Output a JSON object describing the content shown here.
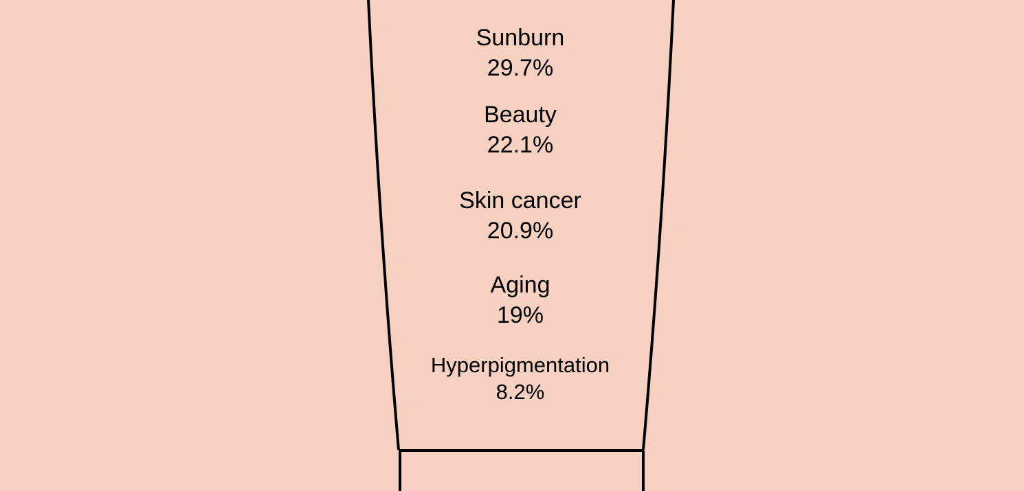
{
  "chart_data": {
    "type": "bar",
    "categories": [
      "Sunburn",
      "Beauty",
      "Skin cancer",
      "Aging",
      "Hyperpigmentation"
    ],
    "values": [
      29.7,
      22.1,
      20.9,
      19,
      8.2
    ],
    "value_labels": [
      "29.7%",
      "22.1%",
      "20.9%",
      "19%",
      "8.2%"
    ],
    "unit": "%",
    "background": "#f6d0c0",
    "outline_color": "#000000"
  }
}
